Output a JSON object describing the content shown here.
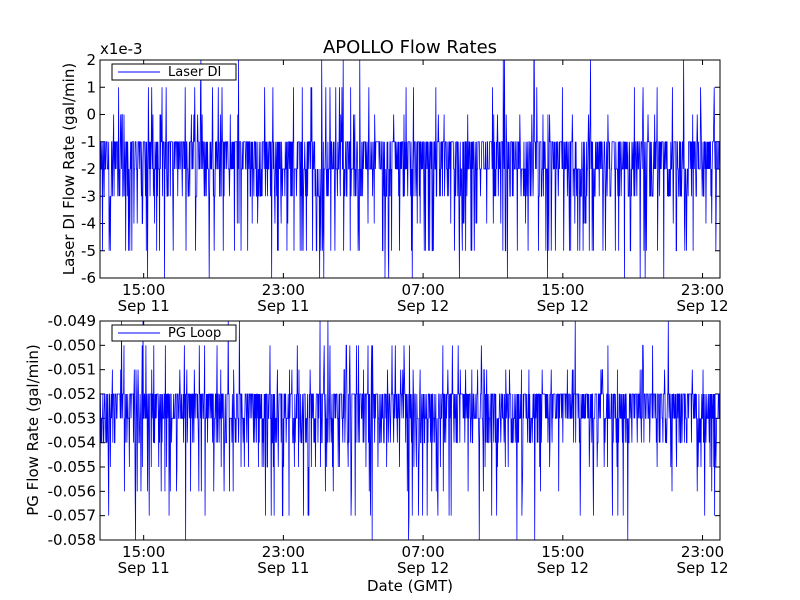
{
  "figure": {
    "title": "APOLLO Flow Rates",
    "xlabel": "Date (GMT)"
  },
  "chart_data": [
    {
      "type": "line",
      "ylabel": "Laser DI Flow Rate (gal/min)",
      "y_scale_label": "x1e-3",
      "ylim": [
        -6,
        2
      ],
      "yticks": [
        "2",
        "1",
        "0",
        "-1",
        "-2",
        "-3",
        "-4",
        "-5",
        "-6"
      ],
      "xlim": [
        "Sep 11 12:30",
        "Sep 13 00:00"
      ],
      "xticks": [
        {
          "time": "15:00",
          "date": "Sep 11"
        },
        {
          "time": "23:00",
          "date": "Sep 11"
        },
        {
          "time": "07:00",
          "date": "Sep 12"
        },
        {
          "time": "15:00",
          "date": "Sep 12"
        },
        {
          "time": "23:00",
          "date": "Sep 12"
        }
      ],
      "legend": {
        "location": "upper-left",
        "entries": [
          "Laser DI"
        ]
      },
      "grid": false,
      "series": [
        {
          "name": "Laser DI",
          "color": "#0000ff",
          "units_multiplier": 0.001,
          "baseline_range": [
            -3,
            -1
          ],
          "typical_value": -2,
          "frequent_excursions": [
            0,
            1,
            -4
          ],
          "occasional_excursions": [
            -5
          ],
          "max": 2,
          "min": -6,
          "noise_levels": [
            2,
            1,
            0,
            -1,
            -2,
            -3,
            -4,
            -5,
            -6
          ]
        }
      ]
    },
    {
      "type": "line",
      "ylabel": "PG Flow Rate (gal/min)",
      "ylim": [
        -0.058,
        -0.049
      ],
      "yticks": [
        "-0.049",
        "-0.050",
        "-0.051",
        "-0.052",
        "-0.053",
        "-0.054",
        "-0.055",
        "-0.056",
        "-0.057",
        "-0.058"
      ],
      "xlim": [
        "Sep 11 12:30",
        "Sep 13 00:00"
      ],
      "xticks": [
        {
          "time": "15:00",
          "date": "Sep 11"
        },
        {
          "time": "23:00",
          "date": "Sep 11"
        },
        {
          "time": "07:00",
          "date": "Sep 12"
        },
        {
          "time": "15:00",
          "date": "Sep 12"
        },
        {
          "time": "23:00",
          "date": "Sep 12"
        }
      ],
      "legend": {
        "location": "upper-left",
        "entries": [
          "PG Loop"
        ]
      },
      "grid": false,
      "series": [
        {
          "name": "PG Loop",
          "color": "#0000ff",
          "baseline_range": [
            -0.054,
            -0.052
          ],
          "typical_value": -0.0533,
          "frequent_excursions": [
            -0.051,
            -0.055
          ],
          "occasional_excursions": [
            -0.05,
            -0.056,
            -0.057
          ],
          "max": -0.049,
          "min": -0.058,
          "noise_levels": [
            -0.049,
            -0.05,
            -0.051,
            -0.052,
            -0.053,
            -0.054,
            -0.055,
            -0.056,
            -0.057,
            -0.058
          ]
        }
      ]
    }
  ]
}
